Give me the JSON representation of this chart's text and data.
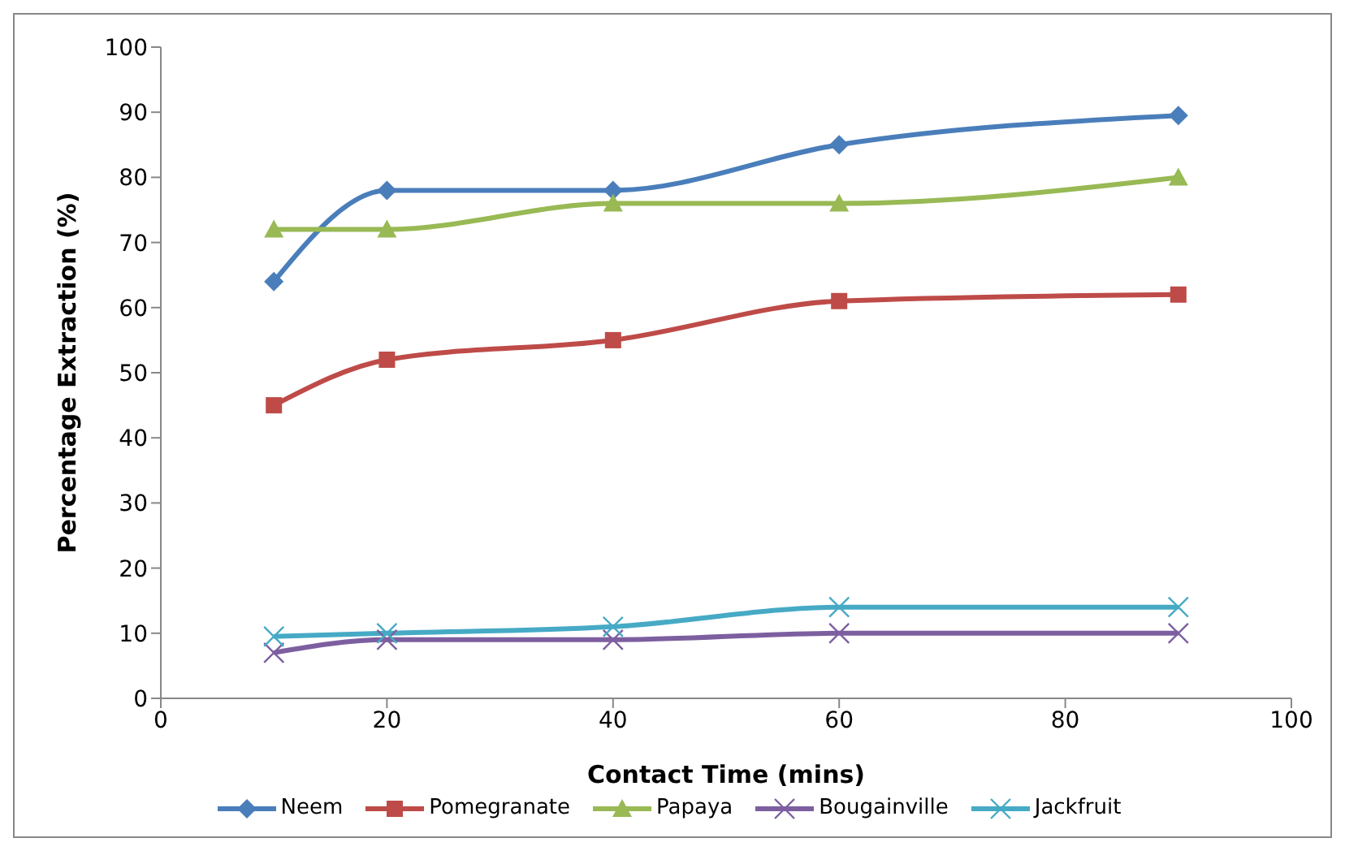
{
  "chart_data": {
    "type": "line",
    "xlabel": "Contact Time (mins)",
    "ylabel": "Percentage Extraction (%)",
    "x": [
      10,
      20,
      40,
      60,
      90
    ],
    "xlim": [
      0,
      100
    ],
    "xticks": [
      0,
      20,
      40,
      60,
      80,
      100
    ],
    "ylim": [
      0,
      100
    ],
    "yticks": [
      0,
      10,
      20,
      30,
      40,
      50,
      60,
      70,
      80,
      90,
      100
    ],
    "grid": false,
    "legend": "bottom",
    "series": [
      {
        "name": "Neem",
        "color": "#4a7ebb",
        "marker": "diamond",
        "values": [
          64,
          78,
          78,
          85,
          89.5
        ]
      },
      {
        "name": "Pomegranate",
        "color": "#be4b48",
        "marker": "square",
        "values": [
          45,
          52,
          55,
          61,
          62
        ]
      },
      {
        "name": "Papaya",
        "color": "#98b954",
        "marker": "triangle",
        "values": [
          72,
          72,
          76,
          76,
          80
        ]
      },
      {
        "name": "Bougainville",
        "color": "#7d5fa0",
        "marker": "cross",
        "values": [
          7,
          9,
          9,
          10,
          10
        ]
      },
      {
        "name": "Jackfruit",
        "color": "#46aac5",
        "marker": "cross",
        "values": [
          9.5,
          10,
          11,
          14,
          14
        ]
      }
    ]
  }
}
